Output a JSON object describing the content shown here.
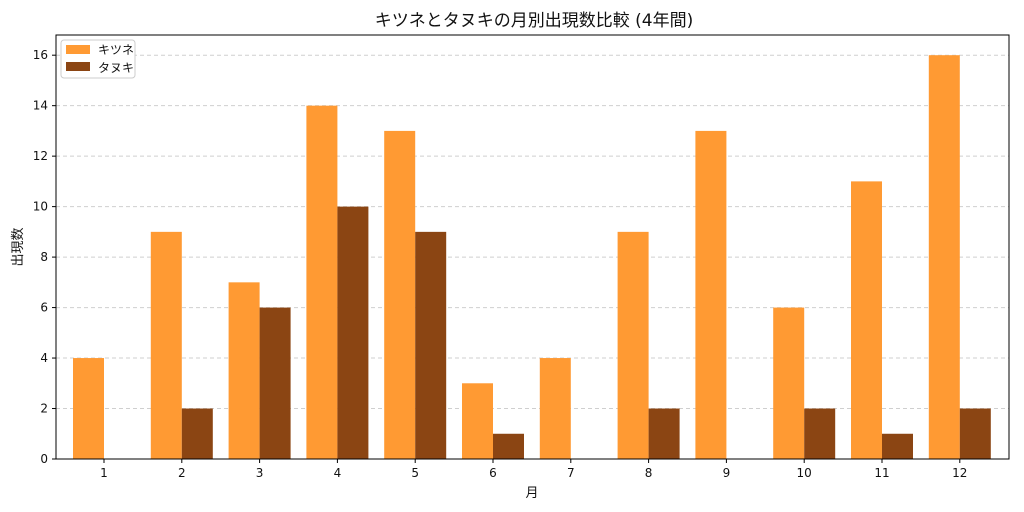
{
  "chart_data": {
    "type": "bar",
    "title": "キツネとタヌキの月別出現数比較 (4年間)",
    "xlabel": "月",
    "ylabel": "出現数",
    "categories": [
      "1",
      "2",
      "3",
      "4",
      "5",
      "6",
      "7",
      "8",
      "9",
      "10",
      "11",
      "12"
    ],
    "series": [
      {
        "name": "キツネ",
        "color": "#ff9a33",
        "values": [
          4,
          9,
          7,
          14,
          13,
          3,
          4,
          9,
          13,
          6,
          11,
          16
        ]
      },
      {
        "name": "タヌキ",
        "color": "#8b4513",
        "values": [
          0,
          2,
          6,
          10,
          9,
          1,
          0,
          2,
          0,
          2,
          1,
          2
        ]
      }
    ],
    "ylim": [
      0,
      16.8
    ],
    "yticks": [
      "0",
      "2",
      "4",
      "6",
      "8",
      "10",
      "12",
      "14",
      "16"
    ],
    "grid": true,
    "legend_position": "top-left"
  }
}
